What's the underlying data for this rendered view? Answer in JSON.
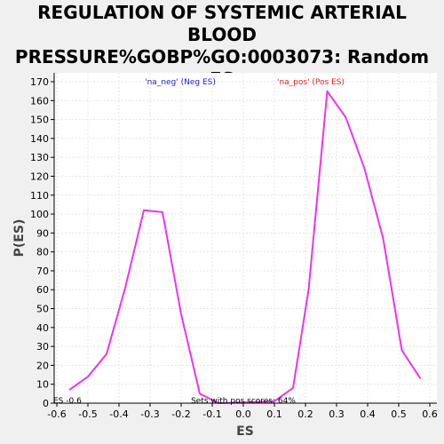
{
  "chart_data": {
    "type": "line",
    "title": "REGULATION OF SYSTEMIC ARTERIAL BLOOD\nPRESSURE%GOBP%GO:0003073: Random ES\ndistribution",
    "xlabel": "ES",
    "ylabel": "P(ES)",
    "xlim": [
      -0.6,
      0.6
    ],
    "ylim": [
      0,
      170
    ],
    "x_ticks": [
      "-0.6",
      "-0.5",
      "-0.4",
      "-0.3",
      "-0.2",
      "-0.1",
      "0.0",
      "0.1",
      "0.2",
      "0.3",
      "0.4",
      "0.5",
      "0.6"
    ],
    "y_ticks": [
      "0",
      "10",
      "20",
      "30",
      "40",
      "50",
      "60",
      "70",
      "80",
      "90",
      "100",
      "110",
      "120",
      "130",
      "140",
      "150",
      "160",
      "170"
    ],
    "grid": true,
    "legend": [
      {
        "label": "'na_neg' (Neg ES)",
        "color": "#2222cc"
      },
      {
        "label": "'na_pos' (Pos ES)",
        "color": "#dd2222"
      }
    ],
    "annotations": {
      "es_marker": "ES -0.6",
      "pos_scores": "Sets with pos scores: 64%"
    },
    "series": [
      {
        "color": "#ee33ee",
        "x": [
          -0.56,
          -0.5,
          -0.44,
          -0.38,
          -0.32,
          -0.26,
          -0.2,
          -0.14,
          -0.08,
          0.1,
          0.16,
          0.21,
          0.27,
          0.33,
          0.39,
          0.45,
          0.51,
          0.57
        ],
        "y": [
          7,
          14,
          26,
          61,
          102,
          101,
          47,
          5,
          0,
          1,
          8,
          60,
          165,
          151,
          124,
          87,
          28,
          13
        ]
      }
    ]
  }
}
